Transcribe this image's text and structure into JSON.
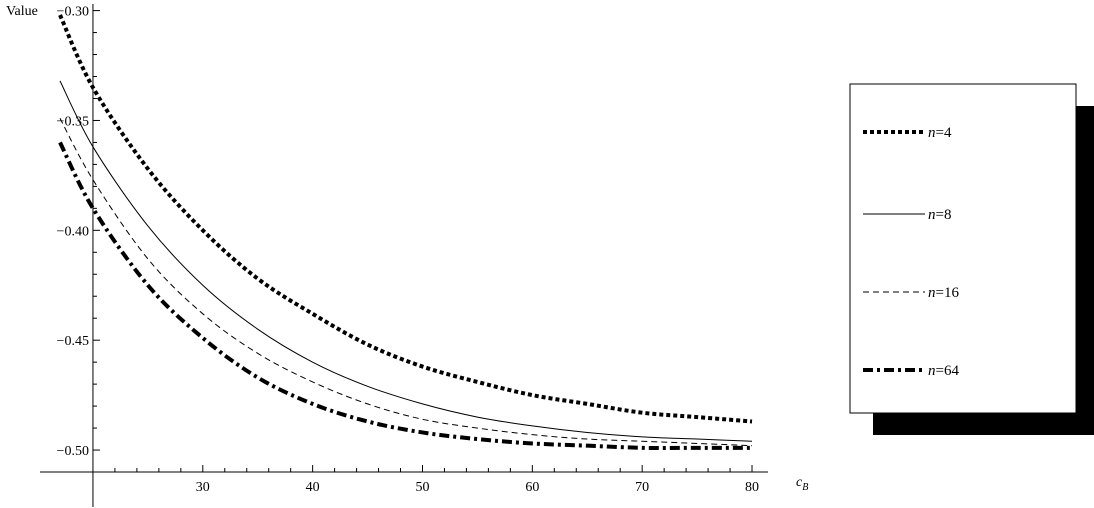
{
  "chart_data": {
    "type": "line",
    "ylabel": "Value",
    "xlabel_main": "c",
    "xlabel_sub": "B",
    "xlim": [
      17,
      81
    ],
    "ylim": [
      -0.515,
      -0.297
    ],
    "x_ticks": [
      30,
      40,
      50,
      60,
      70,
      80
    ],
    "x_tick_labels": [
      "30",
      "40",
      "50",
      "60",
      "70",
      "80"
    ],
    "y_ticks": [
      -0.3,
      -0.35,
      -0.4,
      -0.45,
      -0.5
    ],
    "y_tick_labels": [
      "−0.30",
      "−0.35",
      "−0.40",
      "−0.45",
      "−0.50"
    ],
    "x": [
      17,
      20,
      25,
      30,
      35,
      40,
      45,
      50,
      55,
      60,
      65,
      70,
      75,
      80
    ],
    "series": [
      {
        "name": "n=4",
        "var": "n",
        "eq": "=4",
        "values": [
          -0.302,
          -0.335,
          -0.372,
          -0.4,
          -0.422,
          -0.438,
          -0.452,
          -0.462,
          -0.469,
          -0.475,
          -0.479,
          -0.483,
          -0.485,
          -0.487
        ],
        "style": "dotted-thick"
      },
      {
        "name": "n=8",
        "var": "n",
        "eq": "=8",
        "values": [
          -0.332,
          -0.362,
          -0.398,
          -0.425,
          -0.445,
          -0.46,
          -0.471,
          -0.479,
          -0.485,
          -0.489,
          -0.492,
          -0.494,
          -0.495,
          -0.496
        ],
        "style": "solid-thin"
      },
      {
        "name": "n=16",
        "var": "n",
        "eq": "=16",
        "values": [
          -0.349,
          -0.377,
          -0.413,
          -0.438,
          -0.456,
          -0.469,
          -0.479,
          -0.486,
          -0.49,
          -0.493,
          -0.495,
          -0.496,
          -0.497,
          -0.498
        ],
        "style": "dashed-thin"
      },
      {
        "name": "n=64",
        "var": "n",
        "eq": "=64",
        "values": [
          -0.36,
          -0.39,
          -0.425,
          -0.449,
          -0.467,
          -0.479,
          -0.487,
          -0.492,
          -0.495,
          -0.497,
          -0.498,
          -0.499,
          -0.499,
          -0.499
        ],
        "style": "dashdot-thick"
      }
    ],
    "grid": false,
    "legend_position": "right"
  }
}
